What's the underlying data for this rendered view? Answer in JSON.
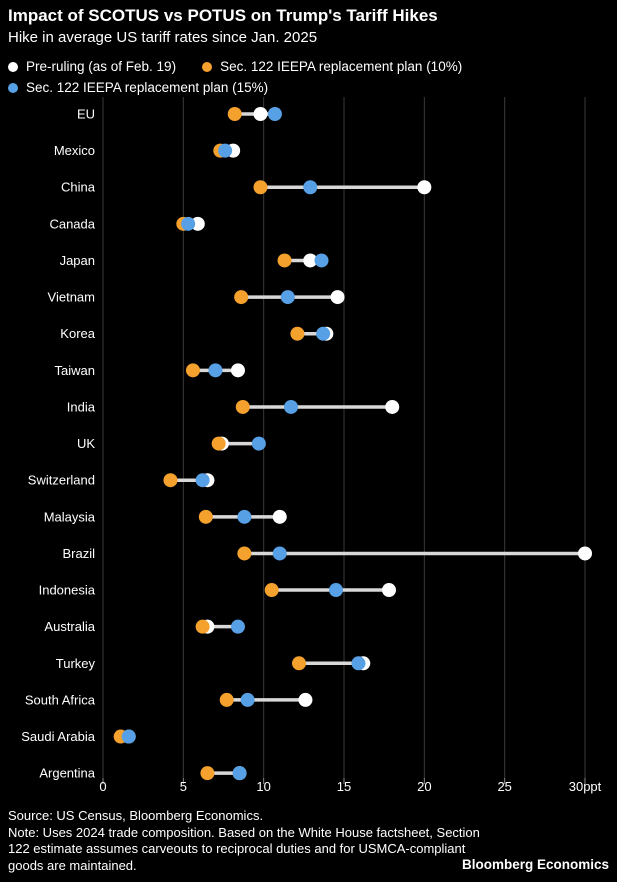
{
  "header": {
    "title": "Impact of SCOTUS vs POTUS on Trump's Tariff Hikes",
    "subtitle": "Hike in average US tariff rates since Jan. 2025"
  },
  "legend": {
    "items": [
      {
        "label": "Pre-ruling (as of Feb. 19)",
        "color": "#ffffff"
      },
      {
        "label": "Sec. 122 IEEPA replacement plan (10%)",
        "color": "#f5a12d"
      },
      {
        "label": "Sec. 122 IEEPA replacement plan (15%)",
        "color": "#57a0e5"
      }
    ]
  },
  "chart_data": {
    "type": "scatter",
    "variant": "dumbbell-dot-plot",
    "title": "Impact of SCOTUS vs POTUS on Trump's Tariff Hikes",
    "subtitle": "Hike in average US tariff rates since Jan. 2025",
    "xlabel": "",
    "ylabel": "",
    "xlim": [
      0,
      30
    ],
    "x_tick_values": [
      0,
      5,
      10,
      15,
      20,
      25,
      30
    ],
    "x_tick_labels": [
      "0",
      "5",
      "10",
      "15",
      "20",
      "25",
      "30ppt"
    ],
    "grid": true,
    "legend_position": "top",
    "unit": "ppt",
    "categories": [
      "EU",
      "Mexico",
      "China",
      "Canada",
      "Japan",
      "Vietnam",
      "Korea",
      "Taiwan",
      "India",
      "UK",
      "Switzerland",
      "Malaysia",
      "Brazil",
      "Indonesia",
      "Australia",
      "Turkey",
      "South Africa",
      "Saudi Arabia",
      "Argentina"
    ],
    "series": [
      {
        "name": "Pre-ruling (as of Feb. 19)",
        "color": "#ffffff",
        "values": [
          9.8,
          8.1,
          20.0,
          5.9,
          12.9,
          14.6,
          13.9,
          8.4,
          18.0,
          7.4,
          6.5,
          11.0,
          30.0,
          17.8,
          6.5,
          16.2,
          12.6,
          1.6,
          8.5
        ]
      },
      {
        "name": "Sec. 122 IEEPA replacement plan (10%)",
        "color": "#f5a12d",
        "values": [
          8.2,
          7.3,
          9.8,
          5.0,
          11.3,
          8.6,
          12.1,
          5.6,
          8.7,
          7.2,
          4.2,
          6.4,
          8.8,
          10.5,
          6.2,
          12.2,
          7.7,
          1.1,
          6.5
        ]
      },
      {
        "name": "Sec. 122 IEEPA replacement plan (15%)",
        "color": "#57a0e5",
        "values": [
          10.7,
          7.6,
          12.9,
          5.3,
          13.6,
          11.5,
          13.7,
          7.0,
          11.7,
          9.7,
          6.2,
          8.8,
          11.0,
          14.5,
          8.4,
          15.9,
          9.0,
          1.6,
          8.5
        ]
      }
    ],
    "connector_color": "#d8d8d8",
    "gridline_color": "#3a3a3a",
    "tick_color": "#8a8a8a",
    "label_color": "#ffffff"
  },
  "footer": {
    "source": "Source: US Census, Bloomberg Economics.",
    "note_lines": [
      "Note: Uses 2024 trade composition. Based on the White House factsheet, Section",
      "122 estimate assumes carveouts to reciprocal duties and for USMCA-compliant",
      "goods are maintained."
    ],
    "brand": "Bloomberg Economics"
  }
}
